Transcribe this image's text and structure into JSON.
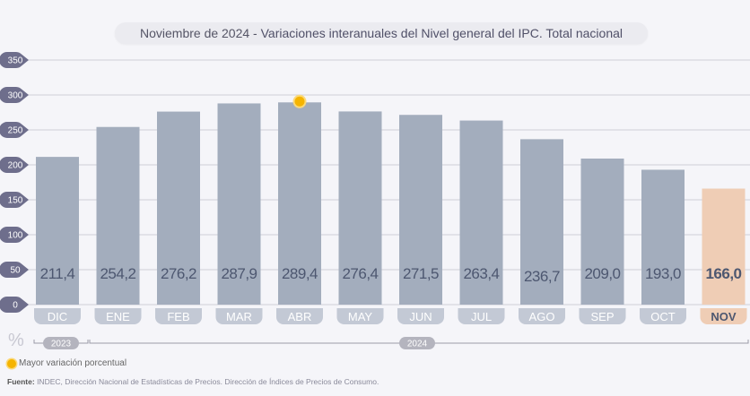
{
  "title": {
    "date": "Noviembre de 2024",
    "separator": " - ",
    "text": "Variaciones interanuales del Nivel general del IPC. Total nacional"
  },
  "unit_label": "%",
  "legend": {
    "label": "Mayor variación porcentual",
    "color": "#f5b400"
  },
  "source": {
    "label": "Fuente:",
    "text": " INDEC, Dirección Nacional de Estadísticas de Precios. Dirección de Índices de Precios de Consumo."
  },
  "colors": {
    "bar": "#a3adbd",
    "bar_highlight": "#efcdb5",
    "label_pill": "#c3c9d5",
    "axis_badge": "#6e6e8c"
  },
  "year_groups": [
    {
      "label": "2023",
      "from": 0,
      "to": 0
    },
    {
      "label": "2024",
      "from": 1,
      "to": 11
    }
  ],
  "chart_data": {
    "type": "bar",
    "title": "Noviembre de 2024 - Variaciones interanuales del Nivel general del IPC. Total nacional",
    "xlabel": "",
    "ylabel": "%",
    "categories": [
      "DIC",
      "ENE",
      "FEB",
      "MAR",
      "ABR",
      "MAY",
      "JUN",
      "JUL",
      "AGO",
      "SEP",
      "OCT",
      "NOV"
    ],
    "values": [
      211.4,
      254.2,
      276.2,
      287.9,
      289.4,
      276.4,
      271.5,
      263.4,
      236.7,
      209.0,
      193.0,
      166.0
    ],
    "value_labels": [
      "211,4",
      "254,2",
      "276,2",
      "287,9",
      "289,4",
      "276,4",
      "271,5",
      "263,4",
      "236,7",
      "209,0",
      "193,0",
      "166,0"
    ],
    "yticks": [
      0,
      50,
      100,
      150,
      200,
      250,
      300,
      350
    ],
    "ylim": [
      0,
      350
    ],
    "grid": true,
    "highlight_index": 11,
    "max_marker_index": 4
  }
}
